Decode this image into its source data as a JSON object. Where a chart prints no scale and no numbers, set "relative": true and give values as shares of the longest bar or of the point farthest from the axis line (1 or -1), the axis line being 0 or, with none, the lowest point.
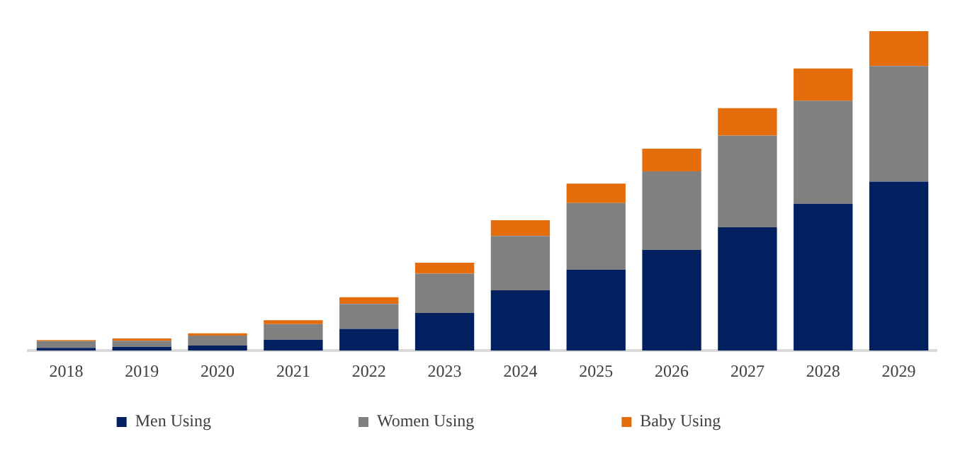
{
  "chart_data": {
    "type": "bar",
    "stacked": true,
    "relative": true,
    "legend": "bottom",
    "grid": false,
    "categories": [
      "2018",
      "2019",
      "2020",
      "2021",
      "2022",
      "2023",
      "2024",
      "2025",
      "2026",
      "2027",
      "2028",
      "2029"
    ],
    "series": [
      {
        "name": "Men Using",
        "color": "#002060",
        "values": [
          0.009,
          0.012,
          0.016,
          0.034,
          0.068,
          0.118,
          0.189,
          0.253,
          0.315,
          0.386,
          0.46,
          0.529
        ]
      },
      {
        "name": "Women Using",
        "color": "#808080",
        "values": [
          0.021,
          0.019,
          0.031,
          0.049,
          0.078,
          0.123,
          0.17,
          0.209,
          0.246,
          0.287,
          0.322,
          0.362
        ]
      },
      {
        "name": "Baby Using",
        "color": "#e46c0a",
        "values": [
          0.003,
          0.007,
          0.007,
          0.012,
          0.021,
          0.034,
          0.049,
          0.061,
          0.071,
          0.086,
          0.101,
          0.109
        ]
      }
    ]
  }
}
